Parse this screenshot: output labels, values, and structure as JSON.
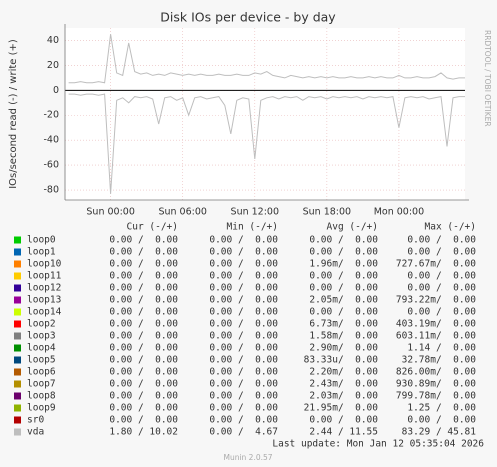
{
  "chart_data": {
    "type": "line",
    "title": "Disk IOs per device - by day",
    "y_label": "IOs/second read (-) / write (+)",
    "side_text": "RRDTOOL / TOBI OETIKER",
    "xlim": [
      -3.8,
      29.5
    ],
    "xticks": [
      {
        "value": 0,
        "label": "Sun 00:00"
      },
      {
        "value": 6,
        "label": "Sun 06:00"
      },
      {
        "value": 12,
        "label": "Sun 12:00"
      },
      {
        "value": 18,
        "label": "Sun 18:00"
      },
      {
        "value": 24,
        "label": "Mon 00:00"
      }
    ],
    "ylim": [
      -88,
      50
    ],
    "yticks": [
      -80,
      -60,
      -40,
      -20,
      0,
      20,
      40
    ],
    "grid": true,
    "x": [
      -3.5,
      -3,
      -2.5,
      -2,
      -1.5,
      -1,
      -0.5,
      0,
      0.5,
      1,
      1.5,
      2,
      2.5,
      3,
      3.5,
      4,
      4.5,
      5,
      5.5,
      6,
      6.5,
      7,
      7.5,
      8,
      8.5,
      9,
      9.5,
      10,
      10.5,
      11,
      11.5,
      12,
      12.5,
      13,
      13.5,
      14,
      14.5,
      15,
      15.5,
      16,
      16.5,
      17,
      17.5,
      18,
      18.5,
      19,
      19.5,
      20,
      20.5,
      21,
      21.5,
      22,
      22.5,
      23,
      23.5,
      24,
      24.5,
      25,
      25.5,
      26,
      26.5,
      27,
      27.5,
      28,
      28.5,
      29,
      29.5
    ],
    "series": [
      {
        "name": "vda",
        "color": "#bebebe",
        "values": [
          6,
          6,
          7,
          6,
          6,
          7,
          6,
          45,
          14,
          12,
          38,
          15,
          13,
          14,
          12,
          13,
          12,
          14,
          13,
          12,
          13,
          12,
          13,
          12,
          12,
          13,
          12,
          12,
          13,
          12,
          12,
          14,
          13,
          15,
          12,
          11,
          10,
          12,
          11,
          10,
          11,
          10,
          11,
          10,
          11,
          10,
          10,
          11,
          10,
          10,
          11,
          10,
          11,
          10,
          10,
          12,
          10,
          10,
          11,
          10,
          10,
          11,
          14,
          10,
          9,
          10,
          10
        ],
        "read_values": [
          -3,
          -3,
          -4,
          -3,
          -3,
          -4,
          -3,
          -83,
          -8,
          -6,
          -10,
          -5,
          -6,
          -5,
          -7,
          -27,
          -6,
          -5,
          -8,
          -6,
          -20,
          -6,
          -5,
          -7,
          -6,
          -5,
          -12,
          -35,
          -8,
          -6,
          -7,
          -55,
          -8,
          -6,
          -5,
          -7,
          -5,
          -6,
          -5,
          -8,
          -5,
          -6,
          -5,
          -7,
          -5,
          -6,
          -5,
          -6,
          -5,
          -7,
          -5,
          -6,
          -5,
          -6,
          -5,
          -30,
          -6,
          -5,
          -6,
          -5,
          -7,
          -6,
          -5,
          -45,
          -6,
          -5,
          -5
        ]
      }
    ]
  },
  "legend": {
    "headers": [
      "Cur (-/+)",
      "Min (-/+)",
      "Avg (-/+)",
      "Max (-/+)"
    ],
    "rows": [
      {
        "name": "loop0",
        "color": "#00cc00",
        "cur": "0.00 /  0.00",
        "min": "0.00 /  0.00",
        "avg": "0.00 /  0.00",
        "max": "0.00 /  0.00"
      },
      {
        "name": "loop1",
        "color": "#0066b3",
        "cur": "0.00 /  0.00",
        "min": "0.00 /  0.00",
        "avg": "0.00 /  0.00",
        "max": "0.00 /  0.00"
      },
      {
        "name": "loop10",
        "color": "#ff8000",
        "cur": "0.00 /  0.00",
        "min": "0.00 /  0.00",
        "avg": "1.96m/  0.00",
        "max": "727.67m/  0.00"
      },
      {
        "name": "loop11",
        "color": "#ffcc00",
        "cur": "0.00 /  0.00",
        "min": "0.00 /  0.00",
        "avg": "0.00 /  0.00",
        "max": "0.00 /  0.00"
      },
      {
        "name": "loop12",
        "color": "#330099",
        "cur": "0.00 /  0.00",
        "min": "0.00 /  0.00",
        "avg": "0.00 /  0.00",
        "max": "0.00 /  0.00"
      },
      {
        "name": "loop13",
        "color": "#990099",
        "cur": "0.00 /  0.00",
        "min": "0.00 /  0.00",
        "avg": "2.05m/  0.00",
        "max": "793.22m/  0.00"
      },
      {
        "name": "loop14",
        "color": "#ccff00",
        "cur": "0.00 /  0.00",
        "min": "0.00 /  0.00",
        "avg": "0.00 /  0.00",
        "max": "0.00 /  0.00"
      },
      {
        "name": "loop2",
        "color": "#ff0000",
        "cur": "0.00 /  0.00",
        "min": "0.00 /  0.00",
        "avg": "6.73m/  0.00",
        "max": "403.19m/  0.00"
      },
      {
        "name": "loop3",
        "color": "#808080",
        "cur": "0.00 /  0.00",
        "min": "0.00 /  0.00",
        "avg": "1.58m/  0.00",
        "max": "603.11m/  0.00"
      },
      {
        "name": "loop4",
        "color": "#008f00",
        "cur": "0.00 /  0.00",
        "min": "0.00 /  0.00",
        "avg": "2.90m/  0.00",
        "max": "1.14 /  0.00"
      },
      {
        "name": "loop5",
        "color": "#00487d",
        "cur": "0.00 /  0.00",
        "min": "0.00 /  0.00",
        "avg": "83.33u/  0.00",
        "max": "32.78m/  0.00"
      },
      {
        "name": "loop6",
        "color": "#b35a00",
        "cur": "0.00 /  0.00",
        "min": "0.00 /  0.00",
        "avg": "2.20m/  0.00",
        "max": "826.00m/  0.00"
      },
      {
        "name": "loop7",
        "color": "#b38f00",
        "cur": "0.00 /  0.00",
        "min": "0.00 /  0.00",
        "avg": "2.43m/  0.00",
        "max": "930.89m/  0.00"
      },
      {
        "name": "loop8",
        "color": "#6b006b",
        "cur": "0.00 /  0.00",
        "min": "0.00 /  0.00",
        "avg": "2.03m/  0.00",
        "max": "799.78m/  0.00"
      },
      {
        "name": "loop9",
        "color": "#8fb300",
        "cur": "0.00 /  0.00",
        "min": "0.00 /  0.00",
        "avg": "21.95m/  0.00",
        "max": "1.25 /  0.00"
      },
      {
        "name": "sr0",
        "color": "#b30000",
        "cur": "0.00 /  0.00",
        "min": "0.00 /  0.00",
        "avg": "0.00 /  0.00",
        "max": "0.00 /  0.00"
      },
      {
        "name": "vda",
        "color": "#bebebe",
        "cur": "1.80 / 10.02",
        "min": "0.00 /  4.67",
        "avg": "2.44 / 11.55",
        "max": "83.29 / 45.81"
      }
    ],
    "last_update": "Last update: Mon Jan 12 05:35:04 2026",
    "footer": "Munin 2.0.57"
  }
}
